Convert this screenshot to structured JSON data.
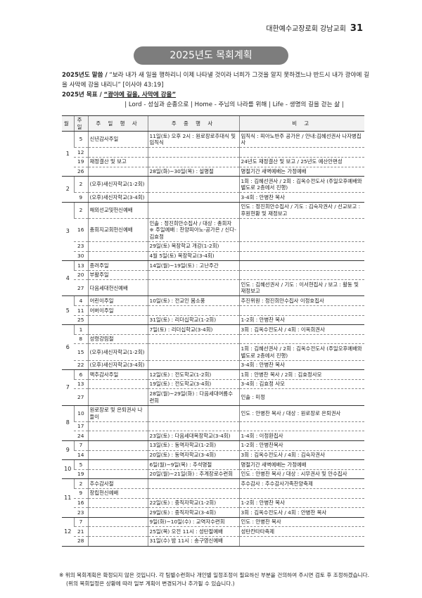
{
  "header": {
    "text": "대한예수교장로회 강남교회",
    "page": "31"
  },
  "title": "2025년도 목회계획",
  "verse": {
    "label": "2025년도 말씀 /",
    "text": "“보라 내가 새 일을 행하리니 이제 나타낼 것이라 너희가 그것을 알지 못하겠느냐 반드시 내가 광야에 길을 사막에 강을 내리니” [이사야 43:19]"
  },
  "goal": {
    "label": "2025년 목표 /",
    "text": "“광야에 길을, 사막에 강을”"
  },
  "motto": "| Lord - 성실과 순종으로 | Home - 주님의 나라를 위해 | Life - 생명의 길을 걷는 삶 |",
  "table": {
    "headers": [
      "월",
      "주일",
      "주 일 행 사",
      "주 중 행 사",
      "비 고"
    ],
    "months": [
      {
        "month": "1",
        "rows": [
          {
            "sunday": "5",
            "event": "신년감사주일",
            "weekly": "11일(토) 오후 2시 : 원로장로추대식 및 임직식",
            "note": "임직식 : 피아노반주 공가은 / 안내:김혜선권사 나자병집사"
          },
          {
            "sunday": "12"
          },
          {
            "sunday": "19",
            "event": "재정결산 및 보고",
            "note": "24년도 재정결산 및 보고 / 25년도 예산안편성"
          },
          {
            "sunday": "26",
            "weekly": "28일(화)~30일(목) : 설명절",
            "note": "명절기간 새벽예배는 가정예배"
          }
        ]
      },
      {
        "month": "2",
        "rows": [
          {
            "sunday": "2",
            "event": "(오후)새신자학교(1-2회)",
            "note": "1회 : 김혜선권사 / 2회 : 김옥수전도사 (주일오후예배와 별도로 2층에서 진행)"
          },
          {
            "sunday": "9",
            "event": "(오후)새신자학교(3-4회)",
            "note": "3-4회 : 안병찬 목사"
          }
        ]
      },
      {
        "month": "3",
        "rows": [
          {
            "sunday": "2",
            "event": "해외선교및헌신예배",
            "note": "인도 : 정진희안수집사 / 기도 : 김숙자권사 / 선교보고 : 후원현황 및 재정보고"
          },
          {
            "sunday": "16",
            "event": "총회지교회헌신예배",
            "weekly": "인솔 : 정진희안수집사 / 대상 : 총회자 ※ 주일예배 : 찬양피아노-공가은 / 신다-김효정"
          },
          {
            "sunday": "23",
            "weekly": "29일(토) 목장학교 개강(1-2회)"
          },
          {
            "sunday": "30",
            "weekly": "4월 5일(토) 목장학교(3-4회)"
          }
        ]
      },
      {
        "month": "4",
        "rows": [
          {
            "sunday": "13",
            "event": "종려주일",
            "weekly": "14일(월)~19일(토) : 고난주간"
          },
          {
            "sunday": "20",
            "event": "부활주일"
          },
          {
            "sunday": "27",
            "event": "다음세대헌신예배",
            "note": "인도 : 김혜선권사 / 기도 : 이서현집사 / 보고 : 활동 및 재정보고"
          }
        ]
      },
      {
        "month": "5",
        "rows": [
          {
            "sunday": "4",
            "event": "어린이주일",
            "weekly": "10일(토) : 전교인 봄소풍",
            "note": "추진위원 : 정진희안수집사 이정호집사"
          },
          {
            "sunday": "11",
            "event": "어버이주일"
          },
          {
            "sunday": "25",
            "weekly": "31일(토) : 리더십학교(1-2회)",
            "note": "1-2회 : 안병찬 목사"
          }
        ]
      },
      {
        "month": "6",
        "rows": [
          {
            "sunday": "1",
            "weekly": "7일(토) : 리더십학교(3-4회)",
            "note": "3회 : 김옥수전도사 / 4회 : 이옥희권사"
          },
          {
            "sunday": "8",
            "event": "성령강림절"
          },
          {
            "sunday": "15",
            "event": "(오후)새신자학교(1-2회)",
            "note": "1회 : 김혜선권사 / 2회 : 김옥수전도사 (주일오후예배와 별도로 2층에서 진행)"
          },
          {
            "sunday": "22",
            "event": "(오후)새신자학교(3-4회)",
            "note": "3-4회 : 안병찬 목사"
          }
        ]
      },
      {
        "month": "7",
        "rows": [
          {
            "sunday": "6",
            "event": "맥추감사주일",
            "weekly": "12일(토) : 전도학교(1-2회)",
            "note": "1회 : 안병찬 목사 / 2회 : 김효정사모"
          },
          {
            "sunday": "13",
            "weekly": "19일(토) : 전도학교(3-4회)",
            "note": "3-4회 : 김효정 사모"
          },
          {
            "sunday": "27",
            "weekly": "28일(월)~29일(화) : 다음세대여름수련회",
            "note": "인솔 : 미정"
          }
        ]
      },
      {
        "month": "8",
        "rows": [
          {
            "sunday": "10",
            "event": "원로장로 및 은퇴권사 나들이",
            "note": "인도 : 안병찬 목사 / 대상 : 원로장로 은퇴권사"
          },
          {
            "sunday": "17"
          },
          {
            "sunday": "24",
            "weekly": "23일(토) : 다음세대목장학교(3-4회)",
            "note": "1-4회 : 이정환집사"
          }
        ]
      },
      {
        "month": "9",
        "rows": [
          {
            "sunday": "7",
            "weekly": "13일(토) : 동역자학교(1-2회)",
            "note": "1-2회 : 안병찬목사"
          },
          {
            "sunday": "14",
            "weekly": "20일(토) : 동역자학교(3-4회)",
            "note": "3회 : 김옥수전도사 / 4회 : 김숙자권사"
          }
        ]
      },
      {
        "month": "10",
        "rows": [
          {
            "sunday": "5",
            "weekly": "6일(월)~9일(목) : 추석명절",
            "note": "명절기간 새벽예배는 가정예배"
          },
          {
            "sunday": "19",
            "weekly": "20일(월)~21일(화) : 추계장로수련회",
            "note": "인도 : 안병찬 목사 / 대상 : 시무권사 및 안수집사"
          }
        ]
      },
      {
        "month": "11",
        "rows": [
          {
            "sunday": "2",
            "event": "추수감사절",
            "note": "추수감사 : 추수감사가족찬양축제"
          },
          {
            "sunday": "9",
            "event": "창립헌신예배"
          },
          {
            "sunday": "16",
            "weekly": "22일(토) : 중직자학교(1-2회)",
            "note": "1-2회 : 안병찬 목사"
          },
          {
            "sunday": "23",
            "weekly": "29일(토) : 중직자학교(3-4회)",
            "note": "3회 : 김옥수전도사 / 4회 : 안병찬 목사"
          }
        ]
      },
      {
        "month": "12",
        "rows": [
          {
            "sunday": "7",
            "weekly": "9일(화)~10일(수) : 교역자수련회",
            "note": "인도 : 안병찬 목사"
          },
          {
            "sunday": "21",
            "weekly": "25일(목) 오전 11시 : 성탄절예배",
            "note": "성탄칸타타축제"
          },
          {
            "sunday": "28",
            "weekly": "31일(수) 밤 11시 : 송구영신예배"
          }
        ]
      }
    ]
  },
  "footnote": "※ 위의 목회계획은 확정되지 않은 것입니다. 각 팀별수련회나 개인별 일정조정이 필요하신 부분을 건의하여 주시면 검토 후 조정하겠습니다. (위의 목회일정은 상황에 따라 일부 계획이 변경되거나 추가될 수 있습니다.)"
}
